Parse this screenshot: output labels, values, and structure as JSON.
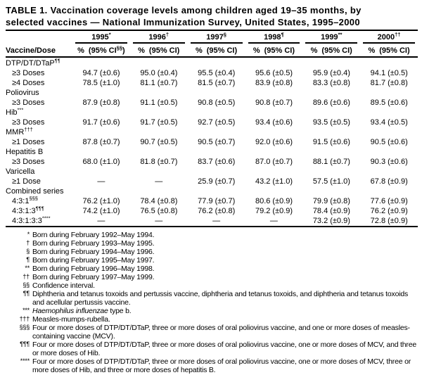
{
  "page": {
    "title_lines": [
      "TABLE 1. Vaccination coverage levels among children aged 19–35 months, by",
      "selected vaccines — National Immunization Survey, United States, 1995–2000"
    ]
  },
  "table": {
    "row_header": "Vaccine/Dose",
    "no_data_symbol": "—",
    "years": [
      {
        "label": "1995",
        "marker": "*",
        "pct": "%",
        "ci_pre": "(95% CI",
        "ci_sup": "§§",
        "ci_post": ")"
      },
      {
        "label": "1996",
        "marker": "†",
        "pct": "%",
        "ci_pre": "(95% CI",
        "ci_sup": "",
        "ci_post": ")"
      },
      {
        "label": "1997",
        "marker": "§",
        "pct": "%",
        "ci_pre": "(95% CI",
        "ci_sup": "",
        "ci_post": ")"
      },
      {
        "label": "1998",
        "marker": "¶",
        "pct": "%",
        "ci_pre": "(95% CI",
        "ci_sup": "",
        "ci_post": ")"
      },
      {
        "label": "1999",
        "marker": "**",
        "pct": "%",
        "ci_pre": "(95% CI",
        "ci_sup": "",
        "ci_post": ")"
      },
      {
        "label": "2000",
        "marker": "††",
        "pct": "%",
        "ci_pre": "(95% CI",
        "ci_sup": "",
        "ci_post": ")"
      }
    ],
    "rows": [
      {
        "type": "category",
        "label": "DTP/DT/DTaP",
        "sup": "¶¶"
      },
      {
        "type": "data",
        "label": "≥3 Doses",
        "sup": "",
        "values": [
          [
            "94.7",
            "(±0.6)"
          ],
          [
            "95.0",
            "(±0.4)"
          ],
          [
            "95.5",
            "(±0.4)"
          ],
          [
            "95.6",
            "(±0.5)"
          ],
          [
            "95.9",
            "(±0.4)"
          ],
          [
            "94.1",
            "(±0.5)"
          ]
        ]
      },
      {
        "type": "data",
        "label": "≥4 Doses",
        "sup": "",
        "values": [
          [
            "78.5",
            "(±1.0)"
          ],
          [
            "81.1",
            "(±0.7)"
          ],
          [
            "81.5",
            "(±0.7)"
          ],
          [
            "83.9",
            "(±0.8)"
          ],
          [
            "83.3",
            "(±0.8)"
          ],
          [
            "81.7",
            "(±0.8)"
          ]
        ]
      },
      {
        "type": "category",
        "label": "Poliovirus",
        "sup": ""
      },
      {
        "type": "data",
        "label": "≥3 Doses",
        "sup": "",
        "values": [
          [
            "87.9",
            "(±0.8)"
          ],
          [
            "91.1",
            "(±0.5)"
          ],
          [
            "90.8",
            "(±0.5)"
          ],
          [
            "90.8",
            "(±0.7)"
          ],
          [
            "89.6",
            "(±0.6)"
          ],
          [
            "89.5",
            "(±0.6)"
          ]
        ]
      },
      {
        "type": "category",
        "label": "Hib",
        "sup": "***"
      },
      {
        "type": "data",
        "label": "≥3 Doses",
        "sup": "",
        "values": [
          [
            "91.7",
            "(±0.6)"
          ],
          [
            "91.7",
            "(±0.5)"
          ],
          [
            "92.7",
            "(±0.5)"
          ],
          [
            "93.4",
            "(±0.6)"
          ],
          [
            "93.5",
            "(±0.5)"
          ],
          [
            "93.4",
            "(±0.5)"
          ]
        ]
      },
      {
        "type": "category",
        "label": "MMR",
        "sup": "†††"
      },
      {
        "type": "data",
        "label": "≥1 Doses",
        "sup": "",
        "values": [
          [
            "87.8",
            "(±0.7)"
          ],
          [
            "90.7",
            "(±0.5)"
          ],
          [
            "90.5",
            "(±0.7)"
          ],
          [
            "92.0",
            "(±0.6)"
          ],
          [
            "91.5",
            "(±0.6)"
          ],
          [
            "90.5",
            "(±0.6)"
          ]
        ]
      },
      {
        "type": "category",
        "label": "Hepatitis B",
        "sup": ""
      },
      {
        "type": "data",
        "label": "≥3 Doses",
        "sup": "",
        "values": [
          [
            "68.0",
            "(±1.0)"
          ],
          [
            "81.8",
            "(±0.7)"
          ],
          [
            "83.7",
            "(±0.6)"
          ],
          [
            "87.0",
            "(±0.7)"
          ],
          [
            "88.1",
            "(±0.7)"
          ],
          [
            "90.3",
            "(±0.6)"
          ]
        ]
      },
      {
        "type": "category",
        "label": "Varicella",
        "sup": ""
      },
      {
        "type": "data",
        "label": "≥1 Dose",
        "sup": "",
        "values": [
          null,
          null,
          [
            "25.9",
            "(±0.7)"
          ],
          [
            "43.2",
            "(±1.0)"
          ],
          [
            "57.5",
            "(±1.0)"
          ],
          [
            "67.8",
            "(±0.9)"
          ]
        ]
      },
      {
        "type": "category",
        "label": "Combined series",
        "sup": ""
      },
      {
        "type": "data",
        "label": "4:3:1",
        "sup": "§§§",
        "values": [
          [
            "76.2",
            "(±1.0)"
          ],
          [
            "78.4",
            "(±0.8)"
          ],
          [
            "77.9",
            "(±0.7)"
          ],
          [
            "80.6",
            "(±0.9)"
          ],
          [
            "79.9",
            "(±0.8)"
          ],
          [
            "77.6",
            "(±0.9)"
          ]
        ]
      },
      {
        "type": "data",
        "label": "4:3:1:3",
        "sup": "¶¶¶",
        "values": [
          [
            "74.2",
            "(±1.0)"
          ],
          [
            "76.5",
            "(±0.8)"
          ],
          [
            "76.2",
            "(±0.8)"
          ],
          [
            "79.2",
            "(±0.9)"
          ],
          [
            "78.4",
            "(±0.9)"
          ],
          [
            "76.2",
            "(±0.9)"
          ]
        ]
      },
      {
        "type": "data",
        "label": "4:3:1:3:3",
        "sup": "****",
        "values": [
          null,
          null,
          null,
          null,
          [
            "73.2",
            "(±0.9)"
          ],
          [
            "72.8",
            "(±0.9)"
          ]
        ]
      }
    ]
  },
  "footnotes": [
    {
      "marker": "*",
      "text": "Born during February 1992–May 1994."
    },
    {
      "marker": "†",
      "text": "Born during February 1993–May 1995."
    },
    {
      "marker": "§",
      "text": "Born during February 1994–May 1996."
    },
    {
      "marker": "¶",
      "text": "Born during February 1995–May 1997."
    },
    {
      "marker": "**",
      "text": "Born during February 1996–May 1998."
    },
    {
      "marker": "††",
      "text": "Born during February 1997–May 1999."
    },
    {
      "marker": "§§",
      "text": "Confidence interval."
    },
    {
      "marker": "¶¶",
      "text": "Diphtheria and tetanus toxoids and pertussis vaccine, diphtheria and tetanus toxoids, and diphtheria and tetanus toxoids and acellular pertussis vaccine."
    },
    {
      "marker": "***",
      "italic": "Haemophilus influenzae",
      "text": " type b."
    },
    {
      "marker": "†††",
      "text": "Measles-mumps-rubella."
    },
    {
      "marker": "§§§",
      "text": "Four or more doses of DTP/DT/DTaP, three or more doses of oral poliovirus vaccine, and one or more doses of measles-containing vaccine (MCV)."
    },
    {
      "marker": "¶¶¶",
      "text": "Four or more doses of DTP/DT/DTaP, three or more doses of oral poliovirus vaccine, one or more doses of MCV, and three or more doses of Hib."
    },
    {
      "marker": "****",
      "text": "Four or more doses of DTP/DT/DTaP, three or more doses of oral poliovirus vaccine, one or more doses of MCV, three or more doses of Hib, and three or more doses of hepatitis B."
    }
  ]
}
